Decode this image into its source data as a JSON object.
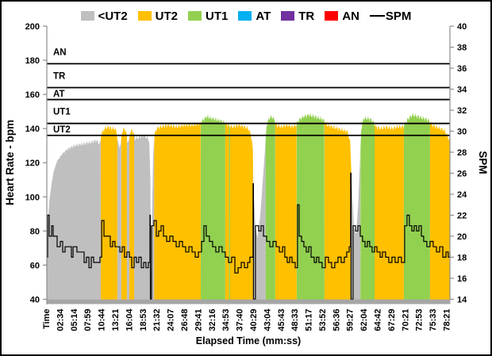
{
  "frame": {
    "background": "#ffffff",
    "border_color": "#000000"
  },
  "chart_data": {
    "type": "area",
    "title": "",
    "x_axis": {
      "title": "Elapsed Time (mm:ss)",
      "categories": [
        "Time",
        "02:34",
        "05:14",
        "07:59",
        "10:44",
        "13:21",
        "16:04",
        "18:53",
        "21:32",
        "24:07",
        "26:48",
        "29:41",
        "32:16",
        "34:53",
        "37:40",
        "40:29",
        "43:04",
        "45:43",
        "48:33",
        "51:17",
        "53:52",
        "56:36",
        "59:27",
        "62:04",
        "64:42",
        "67:29",
        "70:21",
        "72:53",
        "75:33",
        "78:21"
      ]
    },
    "y_axis_left": {
      "title": "Heart Rate - bpm",
      "min": 40,
      "max": 200,
      "tick_step": 20,
      "ticks": [
        200,
        180,
        160,
        140,
        120,
        100,
        80,
        60,
        40
      ]
    },
    "y_axis_right": {
      "title": "SPM",
      "min": 14,
      "max": 40,
      "tick_step": 2,
      "ticks": [
        40,
        38,
        36,
        34,
        32,
        30,
        28,
        26,
        24,
        22,
        20,
        18,
        16,
        14
      ]
    },
    "legend": [
      {
        "label": "<UT2",
        "color": "#bfbfbf",
        "type": "swatch"
      },
      {
        "label": "UT2",
        "color": "#ffc000",
        "type": "swatch"
      },
      {
        "label": "UT1",
        "color": "#92d050",
        "type": "swatch"
      },
      {
        "label": "AT",
        "color": "#00b0f0",
        "type": "swatch"
      },
      {
        "label": "TR",
        "color": "#7030a0",
        "type": "swatch"
      },
      {
        "label": "AN",
        "color": "#ff0000",
        "type": "swatch"
      },
      {
        "label": "SPM",
        "color": "#000000",
        "type": "line"
      }
    ],
    "zone_colors": {
      "lt_ut2": "#bfbfbf",
      "ut2": "#ffc000",
      "ut1": "#92d050",
      "at": "#00b0f0",
      "tr": "#7030a0",
      "an": "#ff0000"
    },
    "threshold_line_color": "#000000",
    "axis_color": "#8c8c8c",
    "baseline_bar_color": "#a6a6a6",
    "spm_line_color": "#000000",
    "zones": [
      {
        "label": "AN",
        "hr_min": 178,
        "hr_max": 192
      },
      {
        "label": "TR",
        "hr_min": 164,
        "hr_max": 178
      },
      {
        "label": "AT",
        "hr_min": 157,
        "hr_max": 164
      },
      {
        "label": "UT1",
        "hr_min": 143,
        "hr_max": 157
      },
      {
        "label": "UT2",
        "hr_min": 136,
        "hr_max": 143
      }
    ],
    "zone_fill_segments": [
      [
        0,
        3.91,
        "lt_ut2"
      ],
      [
        3.91,
        5.11,
        "ut2"
      ],
      [
        5.11,
        5.4,
        "lt_ut2"
      ],
      [
        5.4,
        5.8,
        "ut2"
      ],
      [
        5.8,
        5.98,
        "lt_ut2"
      ],
      [
        5.98,
        6.32,
        "ut2"
      ],
      [
        6.32,
        7.78,
        "lt_ut2"
      ],
      [
        7.78,
        11.15,
        "ut2"
      ],
      [
        11.15,
        12.93,
        "ut1"
      ],
      [
        12.93,
        13.2,
        "ut2"
      ],
      [
        13.2,
        13.28,
        "ut1"
      ],
      [
        13.28,
        14.94,
        "ut2"
      ],
      [
        14.94,
        15.86,
        "lt_ut2"
      ],
      [
        15.86,
        16.55,
        "ut1"
      ],
      [
        16.55,
        18.1,
        "ut2"
      ],
      [
        18.1,
        20.11,
        "ut1"
      ],
      [
        20.11,
        22.07,
        "ut2"
      ],
      [
        22.07,
        22.72,
        "lt_ut2"
      ],
      [
        22.72,
        23.74,
        "ut1"
      ],
      [
        23.74,
        25.86,
        "ut2"
      ],
      [
        25.86,
        27.76,
        "ut1"
      ],
      [
        27.76,
        29.2,
        "ut2"
      ]
    ],
    "hr_envelope": [
      [
        0,
        73
      ],
      [
        0.1,
        88
      ],
      [
        0.2,
        99
      ],
      [
        0.35,
        108
      ],
      [
        0.5,
        115
      ],
      [
        0.75,
        121
      ],
      [
        1.1,
        125
      ],
      [
        1.5,
        128
      ],
      [
        2,
        130
      ],
      [
        2.6,
        131
      ],
      [
        3.2,
        132
      ],
      [
        3.6,
        133
      ],
      [
        3.85,
        131
      ],
      [
        3.95,
        137
      ],
      [
        4.2,
        140
      ],
      [
        4.45,
        141
      ],
      [
        4.7,
        140
      ],
      [
        4.95,
        140
      ],
      [
        5.07,
        137
      ],
      [
        5.15,
        132
      ],
      [
        5.25,
        129
      ],
      [
        5.35,
        131
      ],
      [
        5.45,
        138
      ],
      [
        5.6,
        140
      ],
      [
        5.75,
        138
      ],
      [
        5.83,
        133
      ],
      [
        5.95,
        132
      ],
      [
        6.03,
        138
      ],
      [
        6.18,
        139
      ],
      [
        6.3,
        137
      ],
      [
        6.42,
        134
      ],
      [
        6.7,
        135
      ],
      [
        7,
        136
      ],
      [
        7.2,
        135
      ],
      [
        7.42,
        133
      ],
      [
        7.5,
        110
      ],
      [
        7.54,
        60
      ],
      [
        7.58,
        50
      ],
      [
        7.62,
        90
      ],
      [
        7.7,
        125
      ],
      [
        7.8,
        136
      ],
      [
        7.95,
        140
      ],
      [
        8.2,
        141
      ],
      [
        8.8,
        142
      ],
      [
        9.4,
        141
      ],
      [
        10,
        142
      ],
      [
        10.6,
        142
      ],
      [
        11.1,
        143
      ],
      [
        11.3,
        145
      ],
      [
        11.6,
        147
      ],
      [
        11.9,
        146
      ],
      [
        12.4,
        145
      ],
      [
        12.8,
        144
      ],
      [
        13.1,
        142
      ],
      [
        13.5,
        141
      ],
      [
        13.9,
        142
      ],
      [
        14.3,
        141
      ],
      [
        14.6,
        140
      ],
      [
        14.8,
        136
      ],
      [
        14.92,
        128
      ],
      [
        14.97,
        105
      ],
      [
        15.1,
        84
      ],
      [
        15.25,
        76
      ],
      [
        15.45,
        88
      ],
      [
        15.65,
        110
      ],
      [
        15.82,
        130
      ],
      [
        15.92,
        142
      ],
      [
        16.1,
        146
      ],
      [
        16.3,
        147
      ],
      [
        16.5,
        145
      ],
      [
        16.62,
        142
      ],
      [
        17,
        141
      ],
      [
        17.4,
        142
      ],
      [
        17.8,
        141
      ],
      [
        18.05,
        142
      ],
      [
        18.25,
        145
      ],
      [
        18.6,
        147
      ],
      [
        19,
        148
      ],
      [
        19.4,
        147
      ],
      [
        19.8,
        146
      ],
      [
        20.05,
        145
      ],
      [
        20.3,
        142
      ],
      [
        20.7,
        141
      ],
      [
        21.1,
        140
      ],
      [
        21.5,
        139
      ],
      [
        21.8,
        138
      ],
      [
        21.98,
        131
      ],
      [
        22.1,
        105
      ],
      [
        22.25,
        82
      ],
      [
        22.4,
        78
      ],
      [
        22.55,
        95
      ],
      [
        22.68,
        120
      ],
      [
        22.78,
        140
      ],
      [
        22.95,
        146
      ],
      [
        23.2,
        146
      ],
      [
        23.55,
        145
      ],
      [
        23.7,
        143
      ],
      [
        23.85,
        141
      ],
      [
        24.2,
        140
      ],
      [
        24.6,
        141
      ],
      [
        25,
        140
      ],
      [
        25.4,
        141
      ],
      [
        25.8,
        141
      ],
      [
        25.95,
        143
      ],
      [
        26.2,
        146
      ],
      [
        26.5,
        148
      ],
      [
        26.9,
        147
      ],
      [
        27.3,
        146
      ],
      [
        27.65,
        145
      ],
      [
        27.9,
        142
      ],
      [
        28.2,
        141
      ],
      [
        28.5,
        140
      ],
      [
        28.8,
        139
      ],
      [
        29,
        136
      ],
      [
        29.1,
        134
      ],
      [
        29.2,
        133
      ]
    ],
    "spm_series": [
      [
        0,
        18
      ],
      [
        0.06,
        22
      ],
      [
        0.17,
        20
      ],
      [
        0.35,
        21
      ],
      [
        0.46,
        20
      ],
      [
        0.75,
        19
      ],
      [
        0.98,
        19.5
      ],
      [
        1.15,
        18.5
      ],
      [
        1.32,
        19
      ],
      [
        1.61,
        19
      ],
      [
        1.78,
        18
      ],
      [
        1.9,
        19
      ],
      [
        2.18,
        18.5
      ],
      [
        2.47,
        18.5
      ],
      [
        2.7,
        17.5
      ],
      [
        2.87,
        18
      ],
      [
        3.05,
        17
      ],
      [
        3.22,
        18
      ],
      [
        3.39,
        17.5
      ],
      [
        3.62,
        17.5
      ],
      [
        3.85,
        18
      ],
      [
        3.97,
        21.5
      ],
      [
        4.14,
        20
      ],
      [
        4.43,
        20
      ],
      [
        4.6,
        19
      ],
      [
        4.77,
        19.5
      ],
      [
        4.94,
        19
      ],
      [
        5.11,
        19
      ],
      [
        5.29,
        18.5
      ],
      [
        5.46,
        19
      ],
      [
        5.63,
        18
      ],
      [
        5.8,
        18.5
      ],
      [
        5.98,
        18
      ],
      [
        6.15,
        17
      ],
      [
        6.32,
        18
      ],
      [
        6.49,
        17.5
      ],
      [
        6.66,
        18
      ],
      [
        6.84,
        17
      ],
      [
        7.01,
        17.5
      ],
      [
        7.18,
        17
      ],
      [
        7.36,
        17.5
      ],
      [
        7.47,
        22
      ],
      [
        7.5,
        14
      ],
      [
        7.59,
        21
      ],
      [
        7.76,
        21.5
      ],
      [
        7.93,
        20
      ],
      [
        8.1,
        20.5
      ],
      [
        8.28,
        21
      ],
      [
        8.45,
        20
      ],
      [
        8.68,
        19.5
      ],
      [
        8.91,
        20
      ],
      [
        9.14,
        19.5
      ],
      [
        9.37,
        19
      ],
      [
        9.6,
        19.5
      ],
      [
        9.83,
        19
      ],
      [
        10.06,
        18.5
      ],
      [
        10.29,
        19
      ],
      [
        10.52,
        18.5
      ],
      [
        10.75,
        18
      ],
      [
        10.98,
        18.5
      ],
      [
        11.21,
        19.5
      ],
      [
        11.38,
        21
      ],
      [
        11.55,
        20
      ],
      [
        11.78,
        19.5
      ],
      [
        12.01,
        19
      ],
      [
        12.24,
        18.5
      ],
      [
        12.47,
        19
      ],
      [
        12.7,
        18.5
      ],
      [
        12.93,
        18
      ],
      [
        13.16,
        17.5
      ],
      [
        13.39,
        18
      ],
      [
        13.62,
        16.5
      ],
      [
        13.85,
        17
      ],
      [
        14.08,
        17.5
      ],
      [
        14.31,
        17
      ],
      [
        14.54,
        17.5
      ],
      [
        14.71,
        18
      ],
      [
        14.94,
        25
      ],
      [
        14.97,
        14
      ],
      [
        15.11,
        21
      ],
      [
        15.34,
        20.5
      ],
      [
        15.52,
        21
      ],
      [
        15.69,
        20
      ],
      [
        15.92,
        19.5
      ],
      [
        16.15,
        19
      ],
      [
        16.38,
        19.5
      ],
      [
        16.61,
        19
      ],
      [
        16.84,
        18.5
      ],
      [
        17.07,
        19
      ],
      [
        17.24,
        18
      ],
      [
        17.41,
        17.5
      ],
      [
        17.59,
        18
      ],
      [
        17.76,
        17.5
      ],
      [
        17.99,
        17
      ],
      [
        18.16,
        23
      ],
      [
        18.28,
        20
      ],
      [
        18.45,
        19.5
      ],
      [
        18.62,
        19
      ],
      [
        18.79,
        18.5
      ],
      [
        18.97,
        19
      ],
      [
        19.14,
        18
      ],
      [
        19.37,
        17.5
      ],
      [
        19.54,
        18
      ],
      [
        19.71,
        17.5
      ],
      [
        19.94,
        17
      ],
      [
        20.17,
        18
      ],
      [
        20.4,
        17.5
      ],
      [
        20.63,
        17
      ],
      [
        20.86,
        17.5
      ],
      [
        21.09,
        18
      ],
      [
        21.32,
        17.5
      ],
      [
        21.55,
        18
      ],
      [
        21.72,
        18.5
      ],
      [
        21.9,
        19
      ],
      [
        22.01,
        26
      ],
      [
        22.04,
        14
      ],
      [
        22.18,
        21
      ],
      [
        22.36,
        20.5
      ],
      [
        22.53,
        21
      ],
      [
        22.7,
        20
      ],
      [
        22.87,
        19.5
      ],
      [
        23.05,
        19
      ],
      [
        23.22,
        19.5
      ],
      [
        23.39,
        19
      ],
      [
        23.56,
        18.5
      ],
      [
        23.74,
        19
      ],
      [
        23.91,
        18.5
      ],
      [
        24.14,
        18
      ],
      [
        24.31,
        18.5
      ],
      [
        24.54,
        18
      ],
      [
        24.77,
        17.5
      ],
      [
        25,
        18
      ],
      [
        25.23,
        17.5
      ],
      [
        25.46,
        18
      ],
      [
        25.69,
        17.5
      ],
      [
        25.92,
        21
      ],
      [
        26.09,
        22
      ],
      [
        26.26,
        21
      ],
      [
        26.44,
        20.5
      ],
      [
        26.61,
        21
      ],
      [
        26.78,
        20.5
      ],
      [
        26.95,
        21
      ],
      [
        27.13,
        20
      ],
      [
        27.3,
        19.5
      ],
      [
        27.53,
        19
      ],
      [
        27.76,
        19.5
      ],
      [
        27.99,
        19
      ],
      [
        28.22,
        18.5
      ],
      [
        28.45,
        19
      ],
      [
        28.68,
        18
      ],
      [
        28.91,
        18.5
      ],
      [
        29.08,
        18
      ],
      [
        29.2,
        18.5
      ]
    ]
  }
}
